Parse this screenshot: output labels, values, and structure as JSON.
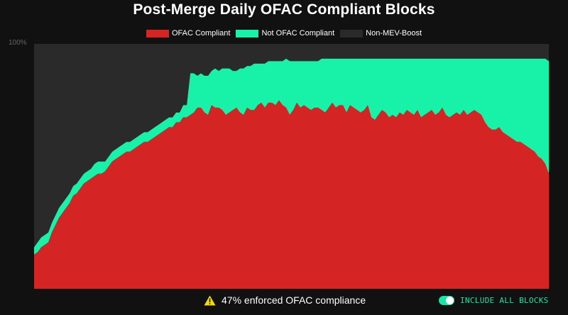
{
  "chart_data": {
    "type": "area",
    "title": "Post-Merge Daily OFAC Compliant Blocks",
    "ylabel": "",
    "xlabel": "",
    "ylim": [
      0,
      100
    ],
    "y_tick_labels": [
      "100%"
    ],
    "legend_position": "top-center",
    "stacked": true,
    "x": [
      0,
      5,
      10,
      15,
      20,
      25,
      30,
      35,
      40,
      45,
      50,
      55,
      60,
      65,
      70,
      75,
      80,
      85,
      90,
      95,
      100,
      105,
      110,
      115,
      120,
      125,
      130,
      135,
      140,
      145,
      150,
      155,
      160,
      165,
      170,
      175,
      180,
      185,
      190,
      195,
      200,
      205,
      210,
      215,
      220,
      225,
      230,
      235,
      240,
      245,
      250,
      255,
      260,
      265,
      270,
      275,
      280,
      285,
      290,
      295,
      300,
      305,
      310,
      315,
      320,
      325,
      330,
      335,
      340,
      345,
      350,
      355,
      360,
      365,
      370,
      375,
      380,
      385,
      390,
      395,
      400,
      405,
      410,
      415,
      420,
      425,
      430,
      435,
      440,
      445,
      450,
      455,
      460,
      465,
      470,
      475,
      480,
      485,
      490,
      495,
      500,
      505,
      510,
      515,
      520,
      525,
      530,
      535,
      540,
      545,
      550,
      555,
      560,
      565,
      570,
      575,
      580,
      585,
      590,
      595,
      600,
      605,
      610,
      615,
      620,
      625,
      630,
      635,
      640,
      645,
      650,
      655,
      660,
      665,
      670,
      675,
      680,
      685,
      690,
      695,
      700,
      705,
      710,
      715,
      720,
      725
    ],
    "series": [
      {
        "name": "OFAC Compliant",
        "color": "#d42424",
        "values": [
          14,
          15,
          17,
          18,
          19,
          23,
          26,
          29,
          31,
          33,
          35,
          38,
          39,
          41,
          43,
          44,
          45,
          46,
          47,
          47,
          48,
          50,
          52,
          53,
          54,
          55,
          56,
          56,
          57,
          58,
          59,
          60,
          60,
          61,
          62,
          63,
          64,
          65,
          66,
          66,
          68,
          68,
          70,
          70,
          71,
          72,
          74,
          74,
          72,
          71,
          75,
          74,
          74,
          73,
          71,
          72,
          73,
          74,
          72,
          71,
          74,
          73,
          73,
          75,
          76,
          74,
          76,
          76,
          75,
          77,
          75,
          74,
          71,
          73,
          76,
          74,
          75,
          74,
          73,
          74,
          74,
          73,
          72,
          74,
          76,
          74,
          75,
          75,
          72,
          75,
          74,
          73,
          72,
          73,
          75,
          70,
          69,
          71,
          73,
          72,
          70,
          71,
          70,
          72,
          71,
          73,
          72,
          71,
          73,
          70,
          71,
          72,
          73,
          71,
          72,
          74,
          71,
          70,
          71,
          72,
          71,
          73,
          71,
          72,
          73,
          72,
          71,
          68,
          66,
          65,
          65,
          66,
          64,
          63,
          62,
          61,
          60,
          60,
          59,
          58,
          57,
          56,
          54,
          53,
          51,
          47
        ]
      },
      {
        "name": "Not OFAC Compliant",
        "color": "#17f2a8",
        "values": [
          3,
          4,
          4,
          4,
          4,
          4,
          4,
          4,
          4,
          4,
          4,
          4,
          4,
          4,
          4,
          4,
          4,
          5,
          5,
          5,
          4,
          4,
          4,
          4,
          4,
          4,
          4,
          4,
          4,
          4,
          4,
          4,
          4,
          4,
          4,
          4,
          4,
          4,
          4,
          4,
          4,
          4,
          5,
          5,
          17,
          16,
          13,
          14,
          15,
          16,
          14,
          16,
          15,
          17,
          19,
          18,
          16,
          15,
          18,
          19,
          17,
          18,
          19,
          17,
          16,
          18,
          17,
          17,
          18,
          16,
          18,
          20,
          22,
          20,
          17,
          19,
          18,
          19,
          20,
          19,
          19,
          21,
          22,
          20,
          18,
          20,
          19,
          19,
          22,
          19,
          20,
          21,
          22,
          21,
          19,
          24,
          25,
          23,
          21,
          22,
          24,
          23,
          24,
          22,
          23,
          21,
          22,
          23,
          21,
          24,
          23,
          22,
          21,
          23,
          22,
          20,
          23,
          24,
          23,
          22,
          23,
          21,
          23,
          22,
          21,
          22,
          23,
          26,
          28,
          29,
          29,
          28,
          30,
          31,
          32,
          33,
          34,
          34,
          35,
          36,
          37,
          38,
          40,
          41,
          43,
          46
        ]
      },
      {
        "name": "Non-MEV-Boost",
        "color": "#2a2a2a",
        "values": [
          83,
          81,
          79,
          78,
          77,
          73,
          70,
          67,
          65,
          63,
          61,
          58,
          57,
          55,
          53,
          52,
          51,
          49,
          48,
          48,
          48,
          46,
          44,
          43,
          42,
          41,
          40,
          40,
          39,
          38,
          37,
          36,
          36,
          35,
          34,
          33,
          32,
          31,
          30,
          30,
          28,
          28,
          25,
          25,
          12,
          12,
          13,
          12,
          13,
          13,
          11,
          10,
          11,
          10,
          10,
          10,
          11,
          11,
          10,
          10,
          9,
          9,
          8,
          8,
          8,
          8,
          7,
          7,
          7,
          7,
          7,
          6,
          7,
          7,
          7,
          7,
          7,
          7,
          7,
          7,
          7,
          6,
          6,
          6,
          6,
          6,
          6,
          6,
          6,
          6,
          6,
          6,
          6,
          6,
          6,
          6,
          6,
          6,
          6,
          6,
          6,
          6,
          6,
          6,
          6,
          6,
          6,
          6,
          6,
          6,
          6,
          6,
          6,
          6,
          6,
          6,
          6,
          6,
          6,
          6,
          6,
          6,
          6,
          6,
          6,
          6,
          6,
          6,
          6,
          6,
          6,
          6,
          6,
          6,
          6,
          6,
          6,
          6,
          6,
          6,
          6,
          6,
          6,
          6,
          6,
          7
        ]
      }
    ]
  },
  "footer": {
    "compliance_text": "47% enforced OFAC compliance",
    "toggle_label": "INCLUDE ALL BLOCKS",
    "toggle_on": true,
    "icon": "warning-icon"
  },
  "colors": {
    "background": "#111111",
    "accent": "#17e6a5",
    "warning": "#f5d90a"
  }
}
